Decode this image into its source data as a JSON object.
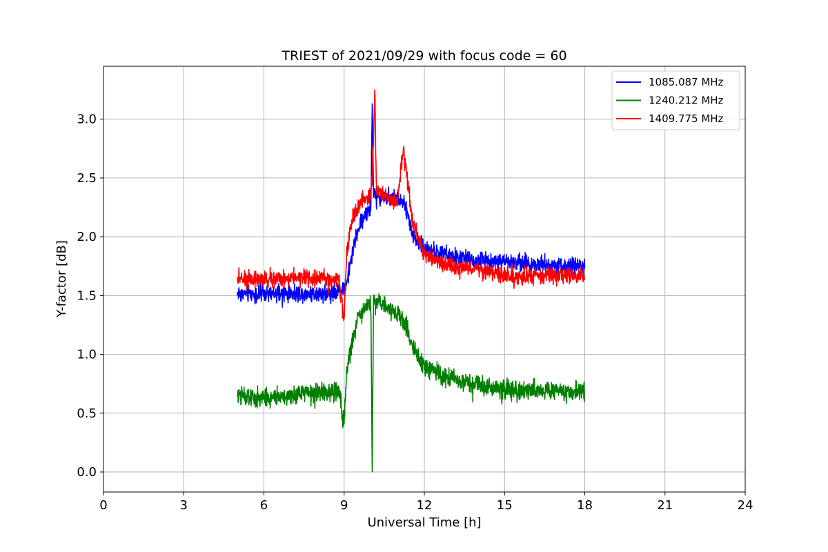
{
  "chart_data": {
    "type": "line",
    "title": "TRIEST of 2021/09/29 with focus code = 60",
    "xlabel": "Universal Time [h]",
    "ylabel": "Y-factor [dB]",
    "xlim": [
      0,
      24
    ],
    "ylim": [
      -0.17,
      3.45
    ],
    "xticks": [
      0,
      3,
      6,
      9,
      12,
      15,
      18,
      21,
      24
    ],
    "yticks": [
      0.0,
      0.5,
      1.0,
      1.5,
      2.0,
      2.5,
      3.0
    ],
    "xtick_labels": [
      "0",
      "3",
      "6",
      "9",
      "12",
      "15",
      "18",
      "21",
      "24"
    ],
    "ytick_labels": [
      "0.0",
      "0.5",
      "1.0",
      "1.5",
      "2.0",
      "2.5",
      "3.0"
    ],
    "grid": true,
    "legend_position": "top-right",
    "series": [
      {
        "name": "1085.087 MHz",
        "color": "#0000ff",
        "noise": 0.045,
        "x": [
          5.0,
          6.0,
          7.0,
          8.0,
          8.8,
          9.1,
          9.3,
          9.5,
          9.8,
          10.0,
          10.05,
          10.1,
          10.3,
          10.6,
          11.0,
          11.3,
          11.6,
          12.0,
          13.0,
          14.0,
          15.0,
          16.0,
          17.0,
          18.0
        ],
        "y": [
          1.52,
          1.51,
          1.52,
          1.52,
          1.53,
          1.6,
          1.85,
          2.05,
          2.2,
          2.25,
          3.15,
          2.35,
          2.35,
          2.35,
          2.33,
          2.25,
          2.0,
          1.9,
          1.83,
          1.8,
          1.79,
          1.77,
          1.76,
          1.75
        ]
      },
      {
        "name": "1240.212 MHz",
        "color": "#008000",
        "noise": 0.05,
        "x": [
          5.0,
          6.0,
          7.0,
          8.0,
          8.8,
          9.0,
          9.1,
          9.3,
          9.5,
          9.8,
          10.0,
          10.05,
          10.1,
          10.5,
          11.0,
          11.3,
          11.6,
          12.0,
          13.0,
          14.0,
          15.0,
          16.0,
          17.0,
          18.0
        ],
        "y": [
          0.65,
          0.64,
          0.66,
          0.67,
          0.68,
          0.4,
          0.85,
          1.1,
          1.3,
          1.4,
          1.45,
          0.0,
          1.45,
          1.42,
          1.35,
          1.25,
          1.05,
          0.9,
          0.8,
          0.74,
          0.71,
          0.7,
          0.69,
          0.68
        ]
      },
      {
        "name": "1409.775 MHz",
        "color": "#ff0000",
        "noise": 0.045,
        "x": [
          5.0,
          6.0,
          7.0,
          8.0,
          8.8,
          9.0,
          9.1,
          9.3,
          9.6,
          9.8,
          10.0,
          10.1,
          10.15,
          10.2,
          10.5,
          11.0,
          11.2,
          11.6,
          12.0,
          13.0,
          14.0,
          15.0,
          16.0,
          17.0,
          18.0
        ],
        "y": [
          1.65,
          1.64,
          1.65,
          1.65,
          1.63,
          1.3,
          1.9,
          2.15,
          2.3,
          2.32,
          2.35,
          2.8,
          3.3,
          2.4,
          2.35,
          2.3,
          2.75,
          2.1,
          1.85,
          1.75,
          1.72,
          1.68,
          1.67,
          1.67,
          1.67
        ]
      }
    ]
  }
}
